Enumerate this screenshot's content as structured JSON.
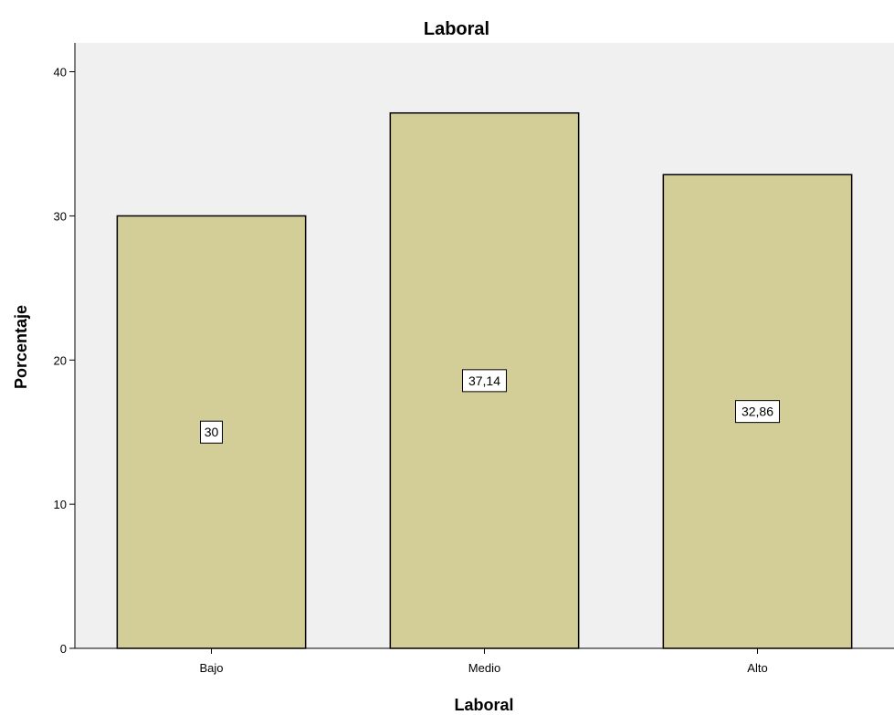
{
  "chart_data": {
    "type": "bar",
    "title": "Laboral",
    "xlabel": "Laboral",
    "ylabel": "Porcentaje",
    "categories": [
      "Bajo",
      "Medio",
      "Alto"
    ],
    "values": [
      30,
      37.14,
      32.86
    ],
    "data_labels": [
      "30",
      "37,14",
      "32,86"
    ],
    "ylim": [
      0,
      42
    ],
    "yticks": [
      0,
      10,
      20,
      30,
      40
    ],
    "ytick_labels": [
      "0",
      "10",
      "20",
      "30",
      "40"
    ],
    "grid": false,
    "legend": "none",
    "colors": {
      "plot_background": "#f0f0f0",
      "bar_fill": "#d3ce97",
      "bar_stroke": "#000000"
    }
  }
}
